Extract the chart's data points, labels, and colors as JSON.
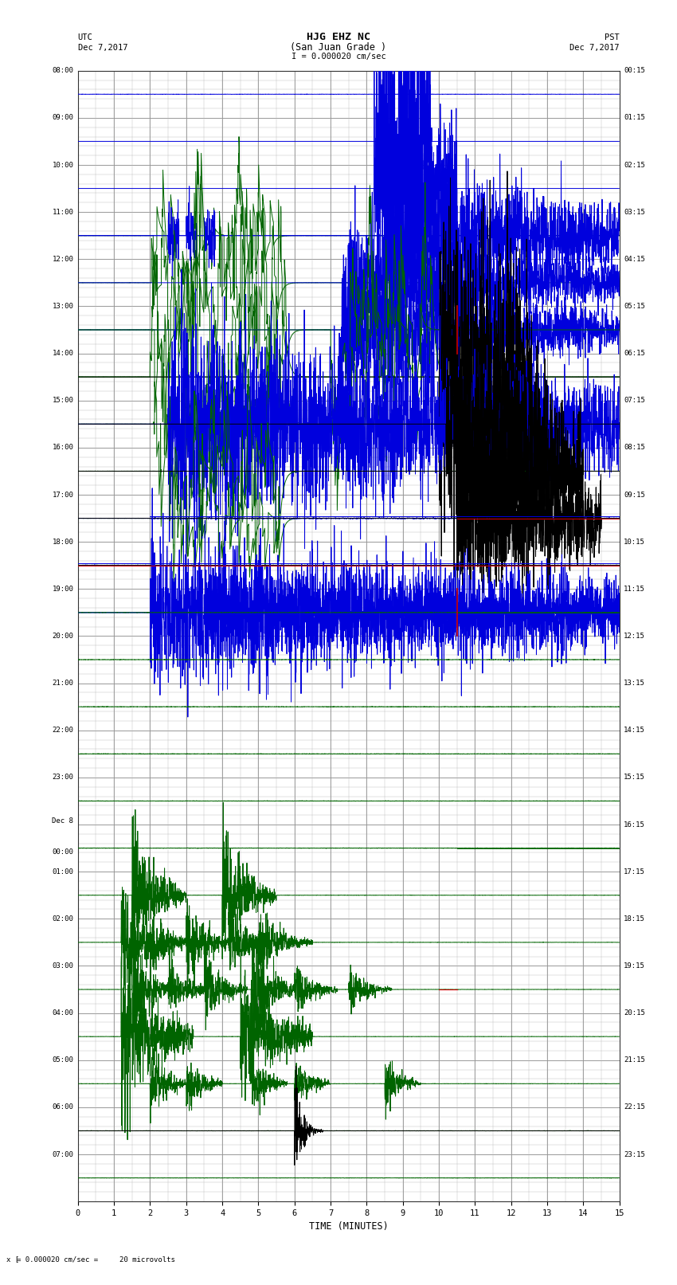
{
  "title_line1": "HJG EHZ NC",
  "title_line2": "(San Juan Grade )",
  "title_scale": "I = 0.000020 cm/sec",
  "left_label_top": "UTC",
  "left_label_date": "Dec 7,2017",
  "right_label_top": "PST",
  "right_label_date": "Dec 7,2017",
  "xlabel": "TIME (MINUTES)",
  "bottom_note": "= 0.000020 cm/sec =     20 microvolts",
  "utc_times": [
    "08:00",
    "09:00",
    "10:00",
    "11:00",
    "12:00",
    "13:00",
    "14:00",
    "15:00",
    "16:00",
    "17:00",
    "18:00",
    "19:00",
    "20:00",
    "21:00",
    "22:00",
    "23:00",
    "Dec 8\n00:00",
    "01:00",
    "02:00",
    "03:00",
    "04:00",
    "05:00",
    "06:00",
    "07:00"
  ],
  "pst_times": [
    "00:15",
    "01:15",
    "02:15",
    "03:15",
    "04:15",
    "05:15",
    "06:15",
    "07:15",
    "08:15",
    "09:15",
    "10:15",
    "11:15",
    "12:15",
    "13:15",
    "14:15",
    "15:15",
    "16:15",
    "17:15",
    "18:15",
    "19:15",
    "20:15",
    "21:15",
    "22:15",
    "23:15"
  ],
  "n_rows": 24,
  "n_minutes": 15,
  "bg_color": "#ffffff",
  "grid_major_color": "#888888",
  "grid_minor_color": "#bbbbbb",
  "trace_color_green": "#006400",
  "trace_color_blue": "#0000dd",
  "trace_color_black": "#000000",
  "trace_color_red": "#cc0000",
  "fig_width": 8.5,
  "fig_height": 16.13
}
